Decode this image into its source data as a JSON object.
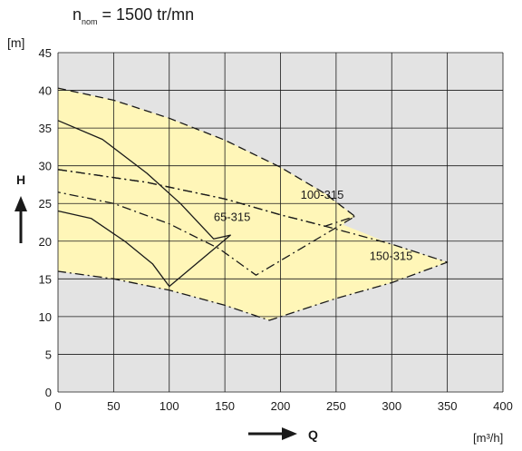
{
  "title": {
    "symbol": "n",
    "subscript": "nom",
    "text": " = 1500 tr/mn"
  },
  "chart_data": {
    "type": "line",
    "title": "n_nom = 1500 tr/mn",
    "xlabel": "Q",
    "xunit": "[m³/h]",
    "ylabel": "H",
    "yunit": "[m]",
    "xlim": [
      0,
      400
    ],
    "ylim": [
      0,
      45
    ],
    "xticks": [
      0,
      50,
      100,
      150,
      200,
      250,
      300,
      350,
      400
    ],
    "yticks": [
      0,
      5,
      10,
      15,
      20,
      25,
      30,
      35,
      40,
      45
    ],
    "grid": true,
    "colors": {
      "background": "#e3e3e3",
      "region_fill": "#fff6b8",
      "grid": "#1a1a1a",
      "line": "#1a1a1a"
    },
    "series": [
      {
        "name": "65-315",
        "style": "solid",
        "label_at": [
          140,
          22.7
        ],
        "points": [
          [
            0,
            36
          ],
          [
            40,
            33.5
          ],
          [
            80,
            29
          ],
          [
            110,
            25
          ],
          [
            140,
            20.3
          ],
          [
            155,
            20.8
          ],
          [
            100,
            14
          ],
          [
            85,
            17
          ],
          [
            60,
            20
          ],
          [
            30,
            23
          ],
          [
            0,
            24
          ]
        ]
      },
      {
        "name": "100-315",
        "style": "dash-dot",
        "label_at": [
          218,
          25.6
        ],
        "points": [
          [
            0,
            29.5
          ],
          [
            80,
            27.8
          ],
          [
            150,
            25.6
          ],
          [
            200,
            23.5
          ],
          [
            240,
            22
          ],
          [
            267,
            23.3
          ],
          [
            225,
            19.6
          ],
          [
            178,
            15.5
          ],
          [
            145,
            19
          ],
          [
            100,
            22.3
          ],
          [
            50,
            25
          ],
          [
            0,
            26.5
          ]
        ]
      },
      {
        "name": "150-315",
        "style": "dash-dot",
        "label_at": [
          280,
          17.5
        ],
        "points": [
          [
            0,
            29.5
          ],
          [
            80,
            27.8
          ],
          [
            150,
            25.6
          ],
          [
            200,
            23.5
          ],
          [
            240,
            22
          ],
          [
            300,
            19.6
          ],
          [
            350,
            17.2
          ],
          [
            300,
            14.5
          ],
          [
            250,
            12.4
          ],
          [
            190,
            9.5
          ],
          [
            150,
            11.5
          ],
          [
            100,
            13.5
          ],
          [
            50,
            15
          ],
          [
            0,
            16
          ]
        ]
      },
      {
        "name": "envelope",
        "style": "dashed",
        "points": [
          [
            0,
            40.3
          ],
          [
            50,
            38.7
          ],
          [
            100,
            36.3
          ],
          [
            150,
            33.4
          ],
          [
            200,
            29.8
          ],
          [
            240,
            26.3
          ],
          [
            267,
            23.3
          ]
        ]
      }
    ],
    "envelope_region": [
      [
        0,
        40.3
      ],
      [
        50,
        38.7
      ],
      [
        100,
        36.3
      ],
      [
        150,
        33.4
      ],
      [
        200,
        29.8
      ],
      [
        240,
        26.3
      ],
      [
        267,
        23.3
      ],
      [
        256,
        22.2
      ],
      [
        300,
        19.6
      ],
      [
        350,
        17.2
      ],
      [
        300,
        14.5
      ],
      [
        250,
        12.4
      ],
      [
        190,
        9.5
      ],
      [
        150,
        11.5
      ],
      [
        100,
        13.5
      ],
      [
        50,
        15
      ],
      [
        0,
        16
      ]
    ]
  }
}
